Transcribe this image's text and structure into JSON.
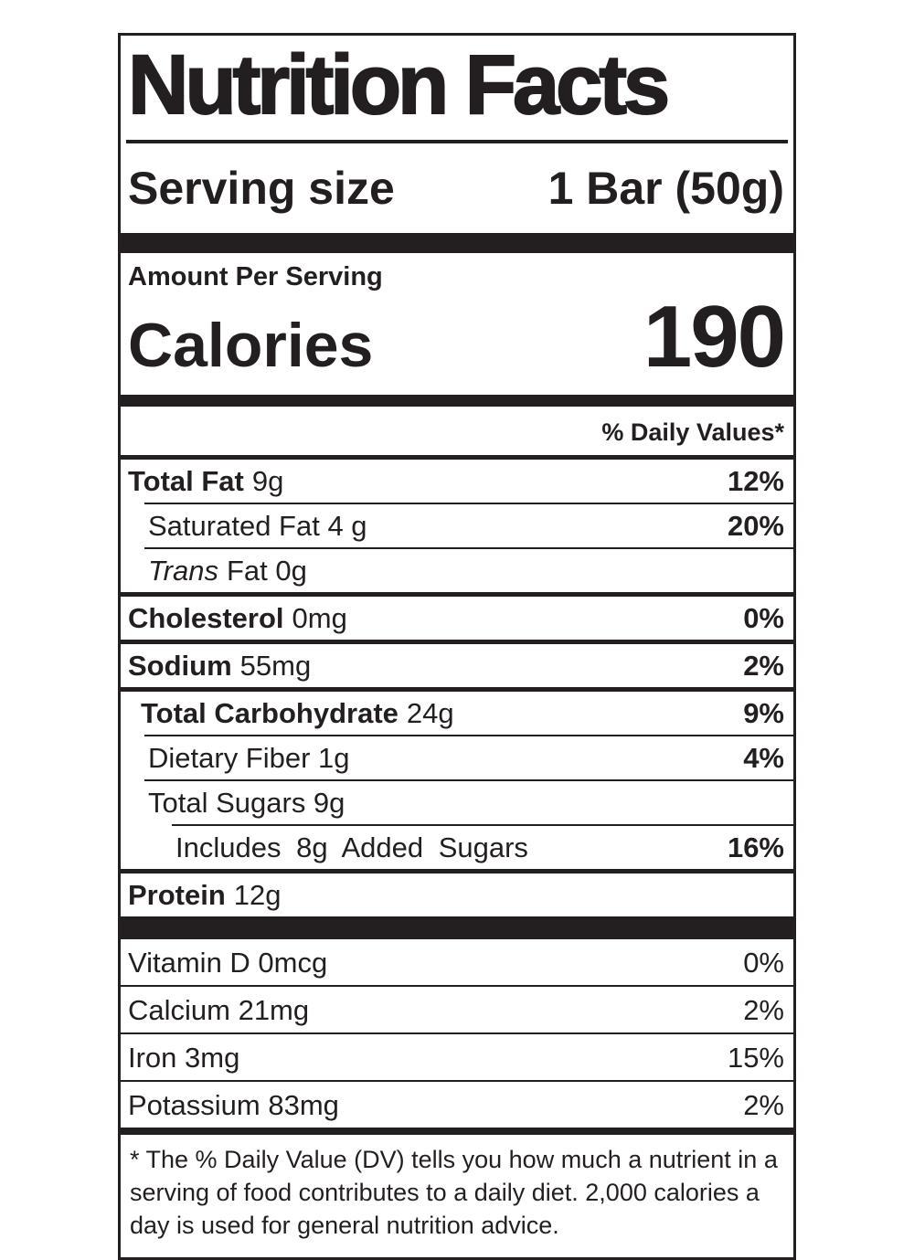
{
  "label": {
    "title": "Nutrition Facts",
    "serving_size": {
      "label": "Serving size",
      "value": "1 Bar (50g)"
    },
    "amount_per_serving": "Amount Per Serving",
    "calories": {
      "label": "Calories",
      "value": "190"
    },
    "daily_values_header": "% Daily Values*",
    "nutrients": [
      {
        "bold": "Total Fat",
        "italic": "",
        "text": "9g",
        "pct": "12%"
      },
      {
        "bold": "",
        "italic": "",
        "text": "Saturated Fat 4 g",
        "pct": "20%"
      },
      {
        "bold": "",
        "italic": "Trans",
        "text": "Fat 0g",
        "pct": ""
      },
      {
        "bold": "Cholesterol",
        "italic": "",
        "text": "0mg",
        "pct": "0%"
      },
      {
        "bold": "Sodium",
        "italic": "",
        "text": "55mg",
        "pct": "2%"
      },
      {
        "bold": "Total Carbohydrate",
        "italic": "",
        "text": "24g",
        "pct": "9%"
      },
      {
        "bold": "",
        "italic": "",
        "text": "Dietary Fiber 1g",
        "pct": "4%"
      },
      {
        "bold": "",
        "italic": "",
        "text": "Total Sugars 9g",
        "pct": ""
      },
      {
        "bold": "",
        "italic": "",
        "text": "Includes 8g Added Sugars",
        "pct": "16%"
      },
      {
        "bold": "Protein",
        "italic": "",
        "text": "12g",
        "pct": ""
      }
    ],
    "micronutrients": [
      {
        "text": "Vitamin D 0mcg",
        "pct": "0%"
      },
      {
        "text": "Calcium 21mg",
        "pct": "2%"
      },
      {
        "text": "Iron 3mg",
        "pct": "15%"
      },
      {
        "text": "Potassium 83mg",
        "pct": "2%"
      }
    ],
    "footnote": "* The % Daily Value (DV) tells you how much a nutrient in a serving of food contributes to a daily diet. 2,000 calories a day is used for general nutrition advice."
  },
  "colors": {
    "ink": "#231f20",
    "background": "#ffffff"
  }
}
